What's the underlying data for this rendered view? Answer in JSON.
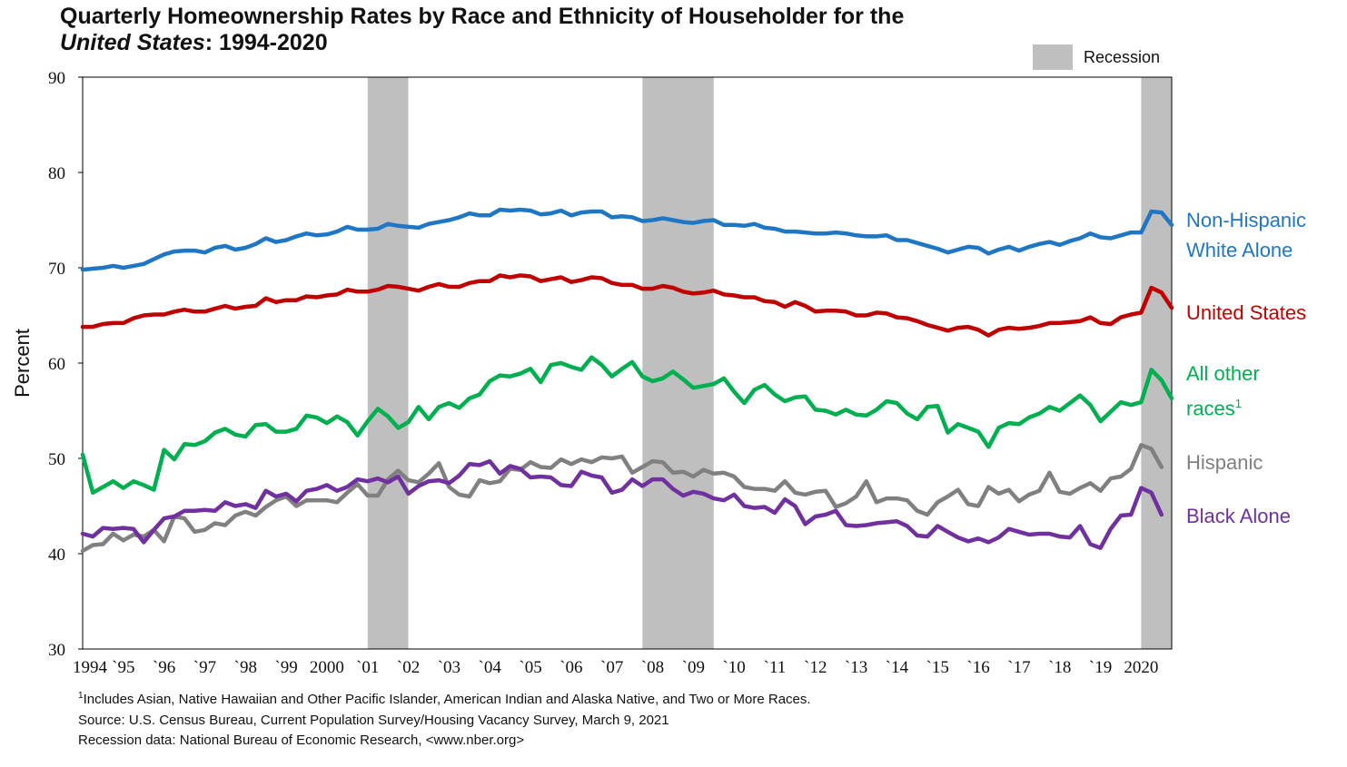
{
  "title_line1": "Quarterly Homeownership Rates by Race and Ethnicity of Householder for the",
  "title_line2_italic": "United States",
  "title_line2_rest": ": 1994-2020",
  "legend": {
    "recession_label": "Recession",
    "recession_color": "#bfbfbf"
  },
  "footnotes": {
    "f1_sup": "1",
    "f1": "Includes Asian, Native Hawaiian and Other Pacific Islander, American Indian and Alaska Native, and Two or More Races.",
    "source": "Source: U.S. Census Bureau, Current Population Survey/Housing Vacancy Survey, March 9, 2021",
    "recession": "Recession data: National Bureau of Economic Research, <www.nber.org>"
  },
  "series_labels": {
    "white_1": "Non-Hispanic",
    "white_2": "White Alone",
    "us": "United States",
    "other_1": "All other",
    "other_2": "races",
    "other_sup": "1",
    "hispanic": "Hispanic",
    "black": "Black Alone"
  },
  "chart_data": {
    "type": "line",
    "title": "Quarterly Homeownership Rates by Race and Ethnicity of Householder for the United States: 1994-2020",
    "ylabel": "Percent",
    "xlabel": "",
    "ylim": [
      30,
      90
    ],
    "yticks": [
      30,
      40,
      50,
      60,
      70,
      80,
      90
    ],
    "x_range": [
      1994.0,
      2020.75
    ],
    "xtick_labels": [
      "1994",
      "`95",
      "`96",
      "`97",
      "`98",
      "`99",
      "2000",
      "`01",
      "`02",
      "`03",
      "`04",
      "`05",
      "`06",
      "`07",
      "`08",
      "`09",
      "`10",
      "`11",
      "`12",
      "`13",
      "`14",
      "`15",
      "`16",
      "`17",
      "`18",
      "`19",
      "2020"
    ],
    "grid": false,
    "recessions": [
      [
        2001.0,
        2002.0
      ],
      [
        2007.75,
        2009.5
      ],
      [
        2020.0,
        2020.75
      ]
    ],
    "series": [
      {
        "name": "Non-Hispanic White Alone",
        "color": "#1f77c4",
        "values": [
          69.8,
          69.9,
          70.0,
          70.2,
          70.0,
          70.2,
          70.4,
          70.9,
          71.4,
          71.7,
          71.8,
          71.8,
          71.6,
          72.1,
          72.3,
          71.9,
          72.1,
          72.5,
          73.1,
          72.7,
          72.9,
          73.3,
          73.6,
          73.4,
          73.5,
          73.8,
          74.3,
          74.0,
          74.0,
          74.1,
          74.6,
          74.4,
          74.3,
          74.2,
          74.6,
          74.8,
          75.0,
          75.3,
          75.7,
          75.5,
          75.5,
          76.1,
          76.0,
          76.1,
          76.0,
          75.6,
          75.7,
          76.0,
          75.5,
          75.8,
          75.9,
          75.9,
          75.3,
          75.4,
          75.3,
          74.9,
          75.0,
          75.2,
          75.0,
          74.8,
          74.7,
          74.9,
          75.0,
          74.5,
          74.5,
          74.4,
          74.6,
          74.2,
          74.1,
          73.8,
          73.8,
          73.7,
          73.6,
          73.6,
          73.7,
          73.6,
          73.4,
          73.3,
          73.3,
          73.4,
          72.9,
          72.9,
          72.6,
          72.3,
          72.0,
          71.6,
          71.9,
          72.2,
          72.1,
          71.5,
          71.9,
          72.2,
          71.8,
          72.2,
          72.5,
          72.7,
          72.4,
          72.8,
          73.1,
          73.6,
          73.2,
          73.1,
          73.4,
          73.7,
          73.7,
          75.9,
          75.8,
          74.5
        ]
      },
      {
        "name": "United States",
        "color": "#c00000",
        "values": [
          63.8,
          63.8,
          64.1,
          64.2,
          64.2,
          64.7,
          65.0,
          65.1,
          65.1,
          65.4,
          65.6,
          65.4,
          65.4,
          65.7,
          66.0,
          65.7,
          65.9,
          66.0,
          66.8,
          66.4,
          66.6,
          66.6,
          67.0,
          66.9,
          67.1,
          67.2,
          67.7,
          67.5,
          67.5,
          67.7,
          68.1,
          68.0,
          67.8,
          67.6,
          68.0,
          68.3,
          68.0,
          68.0,
          68.4,
          68.6,
          68.6,
          69.2,
          69.0,
          69.2,
          69.1,
          68.6,
          68.8,
          69.0,
          68.5,
          68.7,
          69.0,
          68.9,
          68.4,
          68.2,
          68.2,
          67.8,
          67.8,
          68.1,
          67.9,
          67.5,
          67.3,
          67.4,
          67.6,
          67.2,
          67.1,
          66.9,
          66.9,
          66.5,
          66.4,
          65.9,
          66.4,
          66.0,
          65.4,
          65.5,
          65.5,
          65.4,
          65.0,
          65.0,
          65.3,
          65.2,
          64.8,
          64.7,
          64.4,
          64.0,
          63.7,
          63.4,
          63.7,
          63.8,
          63.5,
          62.9,
          63.5,
          63.7,
          63.6,
          63.7,
          63.9,
          64.2,
          64.2,
          64.3,
          64.4,
          64.8,
          64.2,
          64.1,
          64.8,
          65.1,
          65.3,
          67.9,
          67.4,
          65.8
        ]
      },
      {
        "name": "All other races",
        "color": "#00b050",
        "values": [
          50.4,
          46.4,
          47.0,
          47.6,
          46.9,
          47.6,
          47.2,
          46.7,
          50.9,
          49.9,
          51.5,
          51.4,
          51.8,
          52.7,
          53.1,
          52.5,
          52.3,
          53.5,
          53.6,
          52.8,
          52.8,
          53.1,
          54.5,
          54.3,
          53.7,
          54.4,
          53.8,
          52.4,
          53.9,
          55.2,
          54.4,
          53.2,
          53.8,
          55.4,
          54.1,
          55.4,
          55.8,
          55.3,
          56.3,
          56.7,
          58.1,
          58.7,
          58.6,
          58.9,
          59.4,
          58.0,
          59.8,
          60.0,
          59.6,
          59.3,
          60.6,
          59.8,
          58.6,
          59.4,
          60.1,
          58.6,
          58.1,
          58.4,
          59.1,
          58.3,
          57.4,
          57.6,
          57.8,
          58.4,
          57.0,
          55.8,
          57.2,
          57.7,
          56.7,
          56.0,
          56.4,
          56.5,
          55.1,
          55.0,
          54.6,
          55.1,
          54.6,
          54.5,
          55.1,
          56.0,
          55.8,
          54.7,
          54.1,
          55.4,
          55.5,
          52.7,
          53.6,
          53.2,
          52.8,
          51.2,
          53.2,
          53.7,
          53.6,
          54.3,
          54.7,
          55.4,
          55.0,
          55.8,
          56.6,
          55.6,
          53.9,
          54.9,
          55.9,
          55.6,
          55.9,
          59.3,
          58.2,
          56.3
        ]
      },
      {
        "name": "Hispanic",
        "color": "#808080",
        "values": [
          40.3,
          40.9,
          41.0,
          42.1,
          41.4,
          42.0,
          41.8,
          42.5,
          41.3,
          43.9,
          43.7,
          42.3,
          42.5,
          43.2,
          43.0,
          44.0,
          44.4,
          44.0,
          44.9,
          45.6,
          46.0,
          45.0,
          45.6,
          45.6,
          45.6,
          45.4,
          46.4,
          47.3,
          46.1,
          46.1,
          47.8,
          48.7,
          47.7,
          47.5,
          48.4,
          49.5,
          47.0,
          46.2,
          46.0,
          47.7,
          47.4,
          47.6,
          48.9,
          48.8,
          49.6,
          49.1,
          49.0,
          49.9,
          49.4,
          49.9,
          49.6,
          50.1,
          50.0,
          50.2,
          48.5,
          49.1,
          49.7,
          49.6,
          48.5,
          48.6,
          48.1,
          48.8,
          48.4,
          48.5,
          48.1,
          47.0,
          46.8,
          46.8,
          46.6,
          47.6,
          46.4,
          46.2,
          46.5,
          46.6,
          44.9,
          45.3,
          46.0,
          47.6,
          45.4,
          45.8,
          45.8,
          45.6,
          44.5,
          44.1,
          45.4,
          46.0,
          46.7,
          45.2,
          45.0,
          47.0,
          46.3,
          46.7,
          45.5,
          46.2,
          46.6,
          48.5,
          46.5,
          46.3,
          46.9,
          47.4,
          46.6,
          47.9,
          48.1,
          48.9,
          51.4,
          51.0,
          49.1
        ]
      },
      {
        "name": "Black Alone",
        "color": "#7030a0",
        "values": [
          42.1,
          41.8,
          42.7,
          42.6,
          42.7,
          42.6,
          41.2,
          42.5,
          43.7,
          43.9,
          44.5,
          44.5,
          44.6,
          44.5,
          45.4,
          45.0,
          45.2,
          44.8,
          46.6,
          46.0,
          46.3,
          45.5,
          46.6,
          46.8,
          47.2,
          46.6,
          47.0,
          47.8,
          47.6,
          47.9,
          47.5,
          48.1,
          46.3,
          47.1,
          47.6,
          47.7,
          47.4,
          48.2,
          49.4,
          49.3,
          49.7,
          48.4,
          49.2,
          48.9,
          48.0,
          48.1,
          48.0,
          47.2,
          47.1,
          48.6,
          48.2,
          48.0,
          46.4,
          46.7,
          47.8,
          47.1,
          47.8,
          47.8,
          46.8,
          46.1,
          46.5,
          46.3,
          45.8,
          45.6,
          46.2,
          45.0,
          44.8,
          44.9,
          44.3,
          45.7,
          45.0,
          43.1,
          43.9,
          44.1,
          44.5,
          43.0,
          42.9,
          43.0,
          43.2,
          43.3,
          43.4,
          42.9,
          41.9,
          41.8,
          42.9,
          42.3,
          41.7,
          41.3,
          41.6,
          41.2,
          41.7,
          42.6,
          42.3,
          42.0,
          42.1,
          42.1,
          41.8,
          41.7,
          42.9,
          41.0,
          40.6,
          42.6,
          44.0,
          44.1,
          46.9,
          46.4,
          44.1
        ]
      }
    ]
  }
}
